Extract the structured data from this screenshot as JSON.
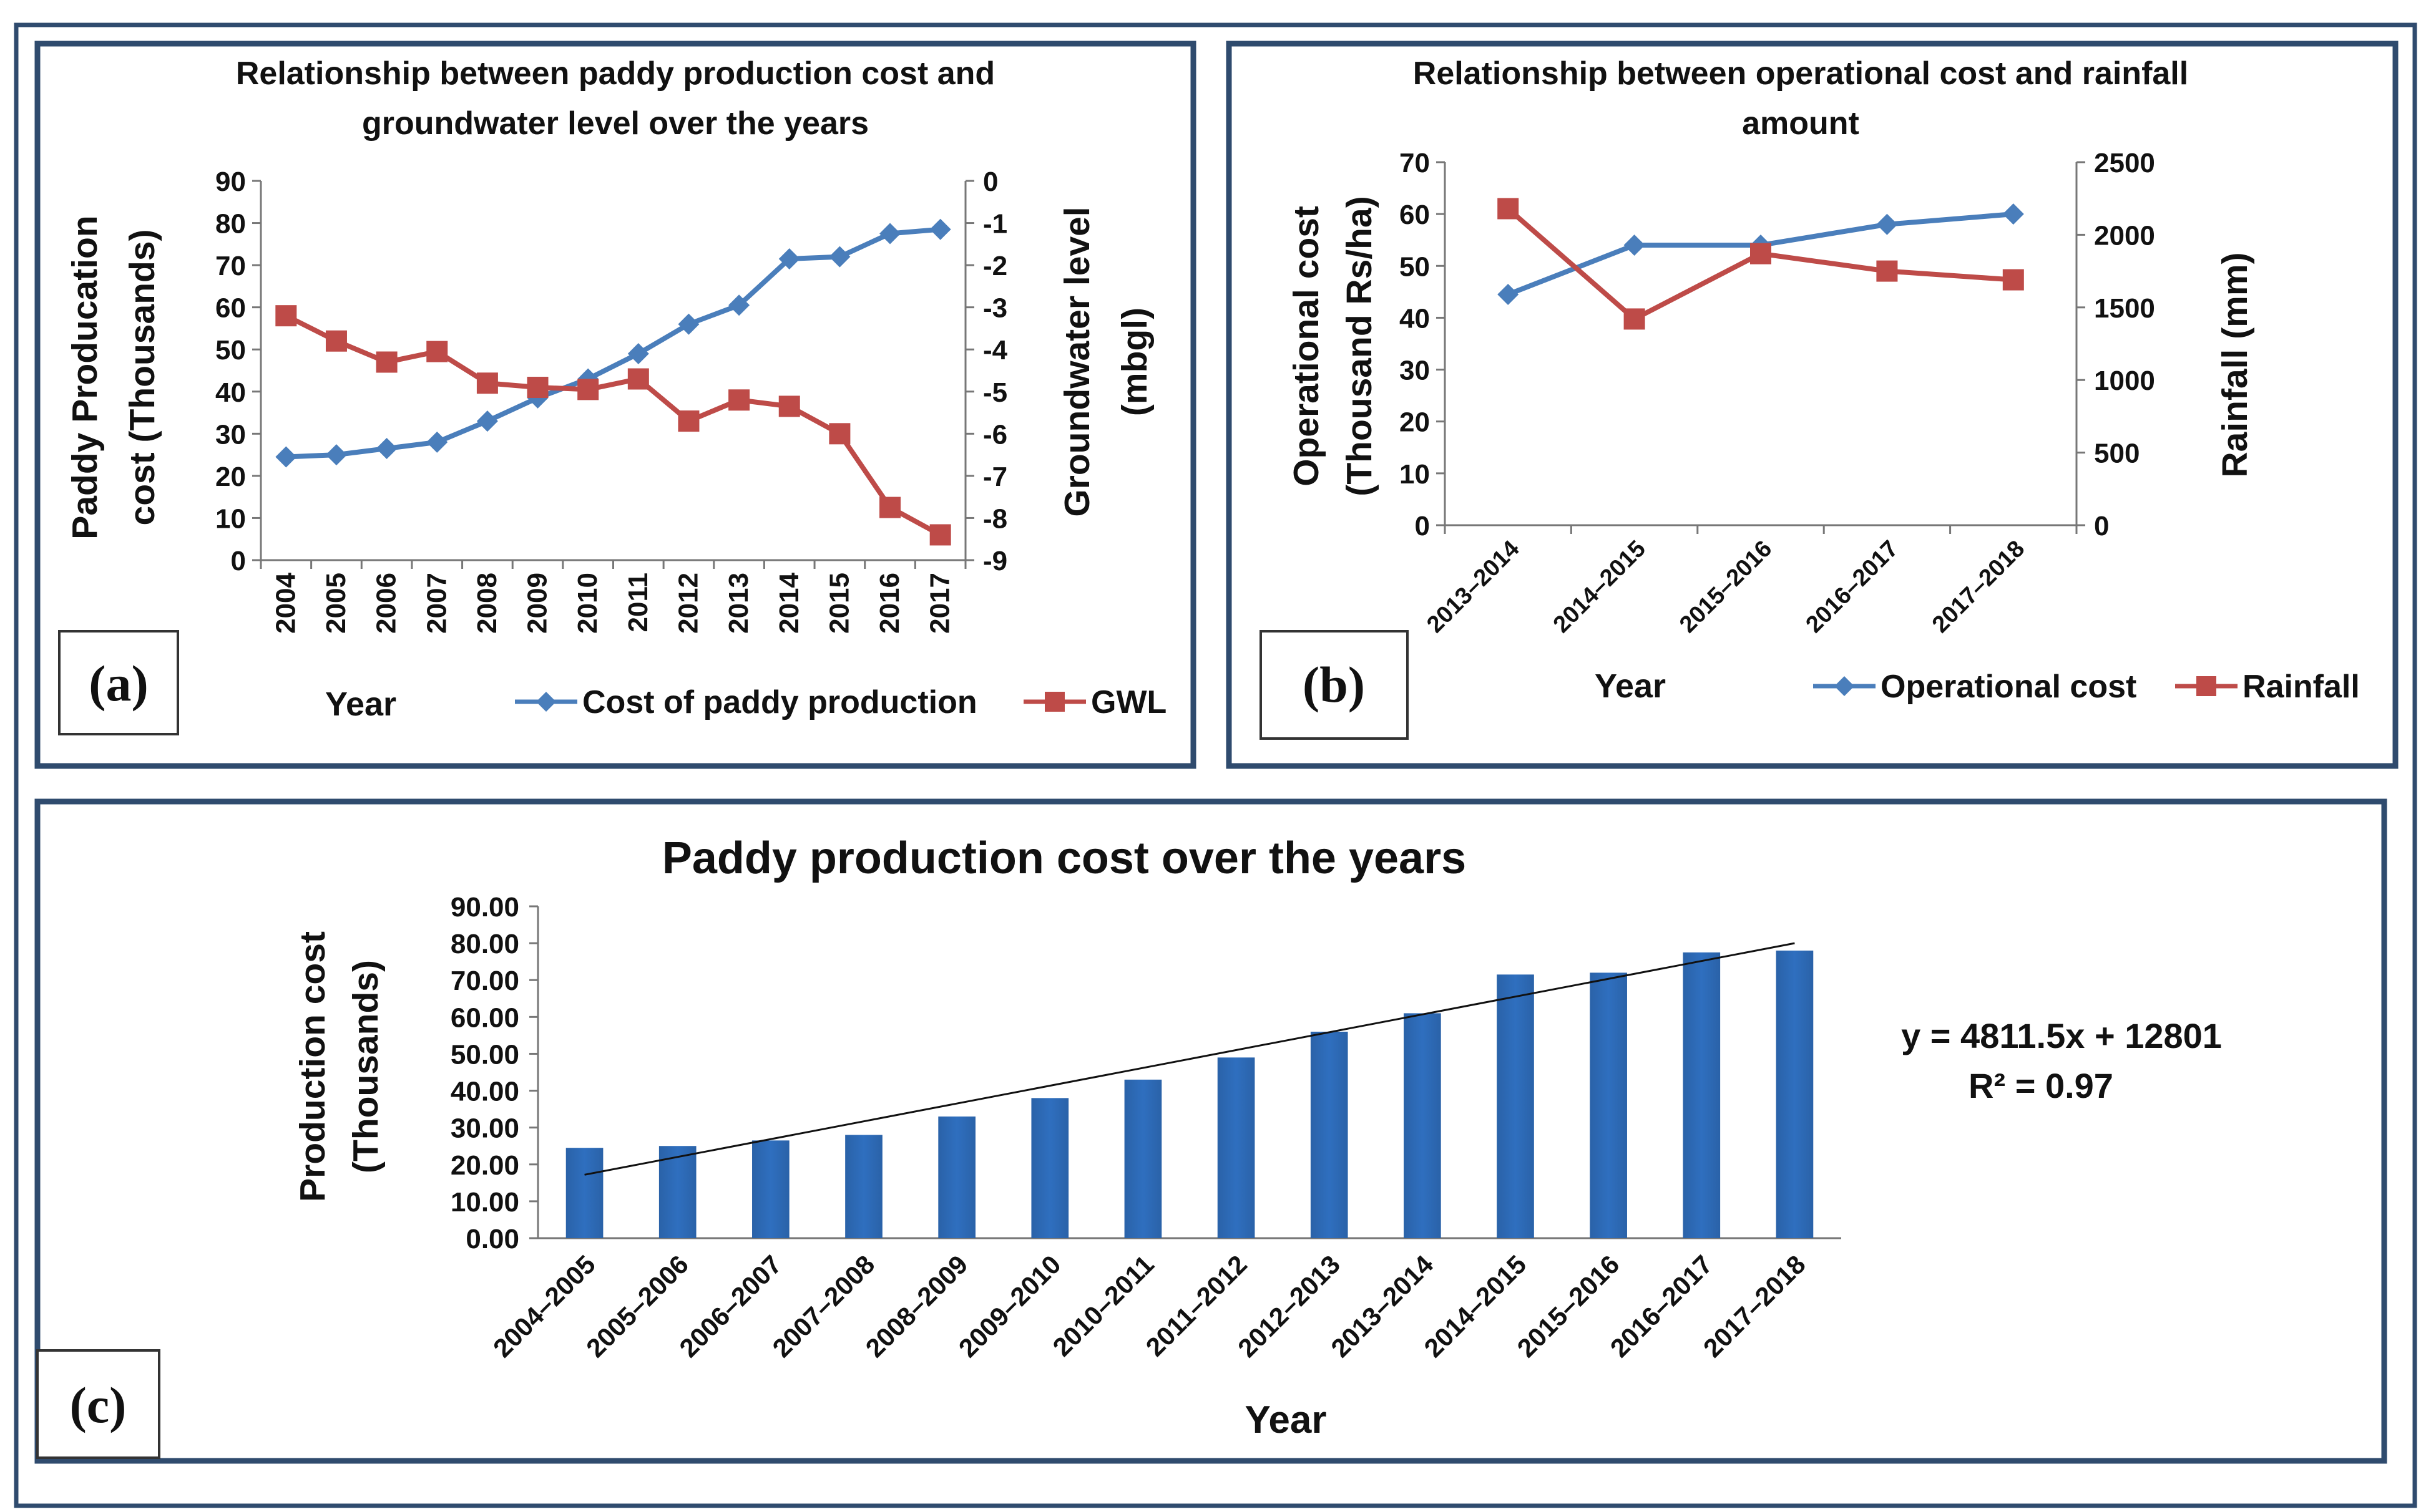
{
  "colors": {
    "blue": "#4a7ebb",
    "red": "#be4b48",
    "bar": "#2f6fbf",
    "frame": "#2f4b6e"
  },
  "panels": {
    "a": {
      "tag": "(a)"
    },
    "b": {
      "tag": "(b)"
    },
    "c": {
      "tag": "(c)"
    }
  },
  "chart_data": [
    {
      "id": "a",
      "type": "line",
      "title": [
        "Relationship between paddy production cost and",
        "groundwater level over the years"
      ],
      "xlabel": "Year",
      "ylabel": [
        "Paddy Producation",
        "cost (Thousands)"
      ],
      "y2label": [
        "Groundwater level",
        "(mbgl)"
      ],
      "categories": [
        "2004",
        "2005",
        "2006",
        "2007",
        "2008",
        "2009",
        "2010",
        "2011",
        "2012",
        "2013",
        "2014",
        "2015",
        "2016",
        "2017"
      ],
      "ylim": [
        0,
        90
      ],
      "yticks": [
        0,
        10,
        20,
        30,
        40,
        50,
        60,
        70,
        80,
        90
      ],
      "y2lim": [
        -9,
        0
      ],
      "y2ticks": [
        0,
        -1,
        -2,
        -3,
        -4,
        -5,
        -6,
        -7,
        -8,
        -9
      ],
      "series": [
        {
          "name": "Cost of paddy production",
          "axis": "left",
          "marker": "diamond",
          "color": "#4a7ebb",
          "values": [
            24.5,
            25,
            26.5,
            28,
            33,
            38.5,
            43,
            49,
            56,
            60.5,
            71.5,
            72,
            77.5,
            78.5
          ]
        },
        {
          "name": "GWL",
          "axis": "right",
          "marker": "square",
          "color": "#be4b48",
          "values": [
            -3.2,
            -3.8,
            -4.3,
            -4.05,
            -4.8,
            -4.9,
            -4.95,
            -4.7,
            -5.7,
            -5.2,
            -5.35,
            -6.0,
            -7.75,
            -8.4
          ]
        }
      ],
      "legend": "bottom"
    },
    {
      "id": "b",
      "type": "line",
      "title": [
        "Relationship between operational cost and rainfall",
        "amount"
      ],
      "xlabel": "Year",
      "ylabel": [
        "Operational cost",
        "(Thousand Rs/ha)"
      ],
      "y2label": [
        "Rainfall (mm)"
      ],
      "categories": [
        "2013–2014",
        "2014–2015",
        "2015–2016",
        "2016–2017",
        "2017–2018"
      ],
      "ylim": [
        0,
        70
      ],
      "yticks": [
        0,
        10,
        20,
        30,
        40,
        50,
        60,
        70
      ],
      "y2lim": [
        0,
        2500
      ],
      "y2ticks": [
        0,
        500,
        1000,
        1500,
        2000,
        2500
      ],
      "series": [
        {
          "name": "Operational cost",
          "axis": "left",
          "marker": "diamond",
          "color": "#4a7ebb",
          "values": [
            44.5,
            54,
            54,
            58,
            60
          ]
        },
        {
          "name": "Rainfall",
          "axis": "right",
          "marker": "square",
          "color": "#be4b48",
          "values": [
            2180,
            1420,
            1870,
            1750,
            1690
          ]
        }
      ],
      "legend": "bottom"
    },
    {
      "id": "c",
      "type": "bar",
      "title": "Paddy production cost over the years",
      "xlabel": "Year",
      "ylabel": [
        "Production cost",
        "(Thousands)"
      ],
      "categories": [
        "2004–2005",
        "2005–2006",
        "2006–2007",
        "2007–2008",
        "2008–2009",
        "2009–2010",
        "2010–2011",
        "2011–2012",
        "2012–2013",
        "2013–2014",
        "2014–2015",
        "2015–2016",
        "2016–2017",
        "2017–2018"
      ],
      "values": [
        24.5,
        25,
        26.5,
        28,
        33,
        38,
        43,
        49,
        56,
        61,
        71.5,
        72,
        77.5,
        78
      ],
      "ylim": [
        0,
        90
      ],
      "yticks": [
        "0.00",
        "10.00",
        "20.00",
        "30.00",
        "40.00",
        "50.00",
        "60.00",
        "70.00",
        "80.00",
        "90.00"
      ],
      "trendline": {
        "start": 17.2,
        "end": 80
      },
      "equation": "y = 4811.5x + 12801",
      "r2": "R² = 0.97"
    }
  ]
}
